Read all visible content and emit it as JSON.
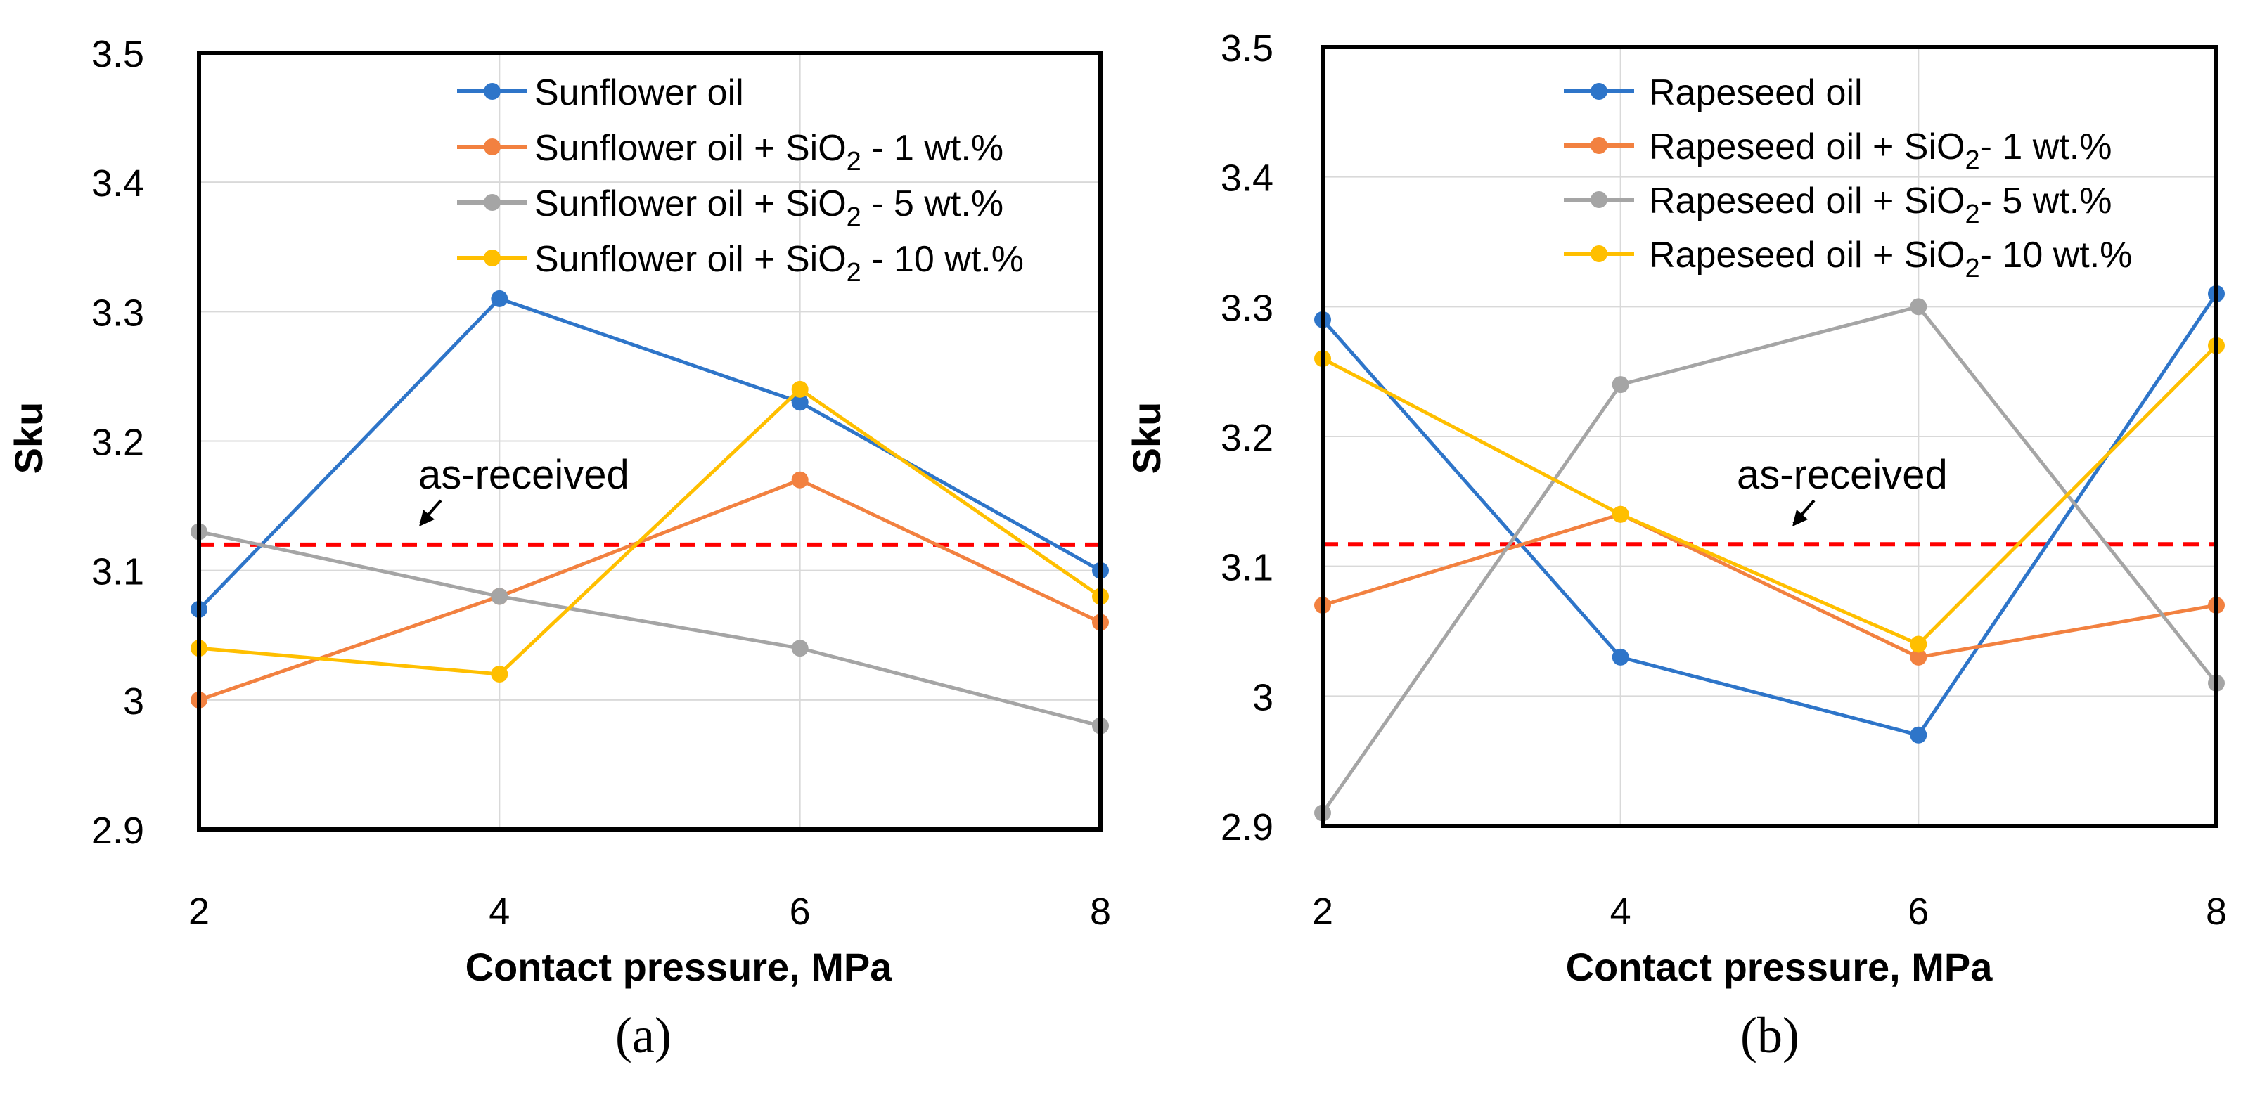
{
  "chart_data": [
    {
      "type": "line",
      "panel_label": "(a)",
      "title": "",
      "xlabel": "Contact pressure, MPa",
      "ylabel": "Sku",
      "x": [
        2,
        4,
        6,
        8
      ],
      "xlim": [
        2,
        8
      ],
      "ylim": [
        2.9,
        3.5
      ],
      "xticks": [
        "2",
        "4",
        "6",
        "8"
      ],
      "yticks": [
        "2.9",
        "3",
        "3.1",
        "3.2",
        "3.3",
        "3.4",
        "3.5"
      ],
      "grid": true,
      "legend_position": "top-right",
      "reference": {
        "label": "as-received",
        "value": 3.12,
        "color": "#ff0000",
        "style": "dashed"
      },
      "series": [
        {
          "name": "Sunflower oil",
          "color": "#2e75c9",
          "values": [
            3.07,
            3.31,
            3.23,
            3.1
          ]
        },
        {
          "name": "Sunflower oil + SiO2 - 1 wt.%",
          "name_parts": [
            "Sunflower oil + SiO",
            "2",
            " - 1 wt.%"
          ],
          "color": "#f28140",
          "values": [
            3.0,
            3.08,
            3.17,
            3.06
          ]
        },
        {
          "name": "Sunflower oil + SiO2 - 5 wt.%",
          "name_parts": [
            "Sunflower oil + SiO",
            "2",
            " - 5 wt.%"
          ],
          "color": "#a5a5a5",
          "values": [
            3.13,
            3.08,
            3.04,
            2.98
          ]
        },
        {
          "name": "Sunflower oil + SiO2 - 10 wt.%",
          "name_parts": [
            "Sunflower oil + SiO",
            "2",
            " - 10 wt.%"
          ],
          "color": "#ffbf00",
          "values": [
            3.04,
            3.02,
            3.24,
            3.08
          ]
        }
      ]
    },
    {
      "type": "line",
      "panel_label": "(b)",
      "title": "",
      "xlabel": "Contact pressure, MPa",
      "ylabel": "Sku",
      "x": [
        2,
        4,
        6,
        8
      ],
      "xlim": [
        2,
        8
      ],
      "ylim": [
        2.9,
        3.5
      ],
      "xticks": [
        "2",
        "4",
        "6",
        "8"
      ],
      "yticks": [
        "2.9",
        "3",
        "3.1",
        "3.2",
        "3.3",
        "3.4",
        "3.5"
      ],
      "grid": true,
      "legend_position": "top-right",
      "reference": {
        "label": "as-received",
        "value": 3.117,
        "color": "#ff0000",
        "style": "dashed"
      },
      "series": [
        {
          "name": "Rapeseed oil",
          "color": "#2e75c9",
          "values": [
            3.29,
            3.03,
            2.97,
            3.31
          ]
        },
        {
          "name": "Rapeseed oil + SiO2- 1 wt.%",
          "name_parts": [
            "Rapeseed oil + SiO",
            "2",
            "- 1 wt.%"
          ],
          "color": "#f28140",
          "values": [
            3.07,
            3.14,
            3.03,
            3.07
          ]
        },
        {
          "name": "Rapeseed oil + SiO2- 5 wt.%",
          "name_parts": [
            "Rapeseed oil + SiO",
            "2",
            "- 5 wt.%"
          ],
          "color": "#a5a5a5",
          "values": [
            2.91,
            3.24,
            3.3,
            3.01
          ]
        },
        {
          "name": "Rapeseed oil + SiO2- 10 wt.%",
          "name_parts": [
            "Rapeseed oil + SiO",
            "2",
            "- 10 wt.%"
          ],
          "color": "#ffbf00",
          "values": [
            3.26,
            3.14,
            3.04,
            3.27
          ]
        }
      ]
    }
  ]
}
